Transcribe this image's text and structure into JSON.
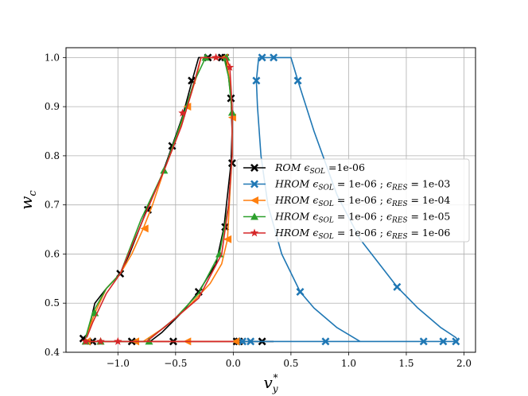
{
  "chart_data": {
    "type": "line",
    "xlabel": "v_y^*",
    "ylabel": "w_c",
    "xlim": [
      -1.45,
      2.1
    ],
    "ylim": [
      0.4,
      1.02
    ],
    "xticks": [
      -1.0,
      -0.5,
      0.0,
      0.5,
      1.0,
      1.5,
      2.0
    ],
    "xtick_labels": [
      "−1.0",
      "−0.5",
      "0.0",
      "0.5",
      "1.0",
      "1.5",
      "2.0"
    ],
    "yticks": [
      0.4,
      0.5,
      0.6,
      0.7,
      0.8,
      0.9,
      1.0
    ],
    "ytick_labels": [
      "0.4",
      "0.5",
      "0.6",
      "0.7",
      "0.8",
      "0.9",
      "1.0"
    ],
    "grid": true,
    "legend_position": "center-right",
    "series": [
      {
        "name": "ROM ϵSOL =1e-06",
        "legend": {
          "main": "ROM ",
          "eps1": "ϵ",
          "sub1": "SOL",
          "tail1": " =1e-06",
          "eps2": "",
          "sub2": "",
          "tail2": ""
        },
        "color": "#000000",
        "marker": "X",
        "line": [
          [
            -1.28,
            0.422
          ],
          [
            -1.15,
            0.422
          ],
          [
            -0.8,
            0.422
          ],
          [
            -0.5,
            0.422
          ],
          [
            -0.25,
            0.422
          ],
          [
            0.0,
            0.422
          ],
          [
            0.1,
            0.422
          ],
          [
            0.25,
            0.422
          ],
          [
            0.35,
            0.422
          ]
        ],
        "line2": [
          [
            -1.3,
            0.428
          ],
          [
            -1.28,
            0.43
          ],
          [
            -1.25,
            0.45
          ],
          [
            -1.2,
            0.5
          ],
          [
            -1.1,
            0.53
          ],
          [
            -0.98,
            0.56
          ],
          [
            -0.9,
            0.6
          ],
          [
            -0.75,
            0.69
          ],
          [
            -0.62,
            0.76
          ],
          [
            -0.53,
            0.82
          ],
          [
            -0.44,
            0.88
          ],
          [
            -0.36,
            0.95
          ],
          [
            -0.3,
            1.0
          ],
          [
            -0.22,
            1.0
          ],
          [
            -0.12,
            1.0
          ],
          [
            -0.08,
            1.0
          ],
          [
            -0.05,
            0.98
          ],
          [
            -0.02,
            0.917
          ],
          [
            -0.01,
            0.85
          ],
          [
            -0.02,
            0.785
          ],
          [
            -0.05,
            0.72
          ],
          [
            -0.08,
            0.655
          ],
          [
            -0.15,
            0.58
          ],
          [
            -0.3,
            0.523
          ],
          [
            -0.45,
            0.48
          ],
          [
            -0.62,
            0.44
          ],
          [
            -0.72,
            0.422
          ]
        ],
        "markers": [
          [
            -1.3,
            0.428
          ],
          [
            -1.22,
            0.422
          ],
          [
            -0.88,
            0.422
          ],
          [
            -0.52,
            0.422
          ],
          [
            0.03,
            0.422
          ],
          [
            0.05,
            0.422
          ],
          [
            0.25,
            0.422
          ],
          [
            -0.98,
            0.56
          ],
          [
            -0.74,
            0.69
          ],
          [
            -0.53,
            0.82
          ],
          [
            -0.36,
            0.953
          ],
          [
            -0.22,
            1.0
          ],
          [
            -0.1,
            1.0
          ],
          [
            -0.07,
            1.0
          ],
          [
            -0.02,
            0.917
          ],
          [
            -0.01,
            0.785
          ],
          [
            -0.07,
            0.655
          ],
          [
            -0.3,
            0.523
          ]
        ]
      },
      {
        "name": "HROM ϵSOL = 1e-06 ; ϵRES = 1e-03",
        "legend": {
          "main": "HROM ",
          "eps1": "ϵ",
          "sub1": "SOL",
          "tail1": " = 1e-06 ; ",
          "eps2": "ϵ",
          "sub2": "RES",
          "tail2": " = 1e-03"
        },
        "color": "#1f77b4",
        "marker": "X",
        "line": [
          [
            0.0,
            0.422
          ],
          [
            0.5,
            0.422
          ],
          [
            0.8,
            0.422
          ],
          [
            1.1,
            0.422
          ],
          [
            1.5,
            0.422
          ],
          [
            1.65,
            0.422
          ],
          [
            1.82,
            0.422
          ],
          [
            1.93,
            0.422
          ]
        ],
        "line2": [
          [
            1.1,
            0.422
          ],
          [
            0.9,
            0.45
          ],
          [
            0.7,
            0.49
          ],
          [
            0.58,
            0.523
          ],
          [
            0.42,
            0.6
          ],
          [
            0.3,
            0.7
          ],
          [
            0.24,
            0.8
          ],
          [
            0.21,
            0.9
          ],
          [
            0.2,
            0.953
          ],
          [
            0.22,
            1.0
          ],
          [
            0.35,
            1.0
          ],
          [
            0.5,
            1.0
          ],
          [
            0.56,
            0.953
          ],
          [
            0.7,
            0.85
          ],
          [
            0.9,
            0.72
          ],
          [
            1.1,
            0.63
          ],
          [
            1.42,
            0.533
          ],
          [
            1.6,
            0.49
          ],
          [
            1.8,
            0.45
          ],
          [
            1.93,
            0.43
          ],
          [
            1.95,
            0.422
          ]
        ],
        "markers": [
          [
            0.08,
            0.422
          ],
          [
            0.15,
            0.422
          ],
          [
            0.8,
            0.422
          ],
          [
            1.65,
            0.422
          ],
          [
            1.82,
            0.422
          ],
          [
            1.93,
            0.422
          ],
          [
            0.58,
            0.523
          ],
          [
            1.42,
            0.533
          ],
          [
            0.56,
            0.953
          ],
          [
            0.25,
            1.0
          ],
          [
            0.35,
            1.0
          ],
          [
            0.2,
            0.953
          ]
        ]
      },
      {
        "name": "HROM ϵSOL = 1e-06 ; ϵRES = 1e-04",
        "legend": {
          "main": "HROM ",
          "eps1": "ϵ",
          "sub1": "SOL",
          "tail1": " = 1e-06 ; ",
          "eps2": "ϵ",
          "sub2": "RES",
          "tail2": " = 1e-04"
        },
        "color": "#ff7f0e",
        "marker": "<",
        "line": [
          [
            -1.28,
            0.422
          ],
          [
            -0.85,
            0.422
          ],
          [
            -0.4,
            0.422
          ],
          [
            0.0,
            0.422
          ]
        ],
        "line2": [
          [
            -1.28,
            0.43
          ],
          [
            -1.2,
            0.48
          ],
          [
            -1.1,
            0.53
          ],
          [
            -0.98,
            0.56
          ],
          [
            -0.88,
            0.6
          ],
          [
            -0.78,
            0.652
          ],
          [
            -0.7,
            0.7
          ],
          [
            -0.6,
            0.77
          ],
          [
            -0.5,
            0.83
          ],
          [
            -0.4,
            0.9
          ],
          [
            -0.32,
            0.96
          ],
          [
            -0.28,
            1.0
          ],
          [
            -0.1,
            1.0
          ],
          [
            -0.06,
            1.0
          ],
          [
            -0.03,
            0.95
          ],
          [
            -0.01,
            0.878
          ],
          [
            -0.01,
            0.8
          ],
          [
            -0.03,
            0.72
          ],
          [
            -0.05,
            0.63
          ],
          [
            -0.1,
            0.58
          ],
          [
            -0.2,
            0.54
          ],
          [
            -0.4,
            0.49
          ],
          [
            -0.6,
            0.45
          ],
          [
            -0.78,
            0.422
          ]
        ],
        "markers": [
          [
            -1.27,
            0.422
          ],
          [
            -0.85,
            0.422
          ],
          [
            -0.4,
            0.422
          ],
          [
            0.02,
            0.422
          ],
          [
            -0.77,
            0.652
          ],
          [
            -0.4,
            0.9
          ],
          [
            -0.01,
            0.878
          ],
          [
            -0.05,
            0.63
          ],
          [
            -0.08,
            1.0
          ]
        ]
      },
      {
        "name": "HROM ϵSOL = 1e-06 ; ϵRES = 1e-05",
        "legend": {
          "main": "HROM ",
          "eps1": "ϵ",
          "sub1": "SOL",
          "tail1": " = 1e-06 ; ",
          "eps2": "ϵ",
          "sub2": "RES",
          "tail2": " = 1e-05"
        },
        "color": "#2ca02c",
        "marker": "^",
        "line": [
          [
            -1.28,
            0.422
          ],
          [
            -1.15,
            0.422
          ],
          [
            -0.75,
            0.422
          ]
        ],
        "line2": [
          [
            -1.28,
            0.43
          ],
          [
            -1.22,
            0.48
          ],
          [
            -1.1,
            0.53
          ],
          [
            -0.98,
            0.56
          ],
          [
            -0.8,
            0.67
          ],
          [
            -0.6,
            0.77
          ],
          [
            -0.45,
            0.87
          ],
          [
            -0.34,
            0.95
          ],
          [
            -0.24,
            1.0
          ],
          [
            -0.08,
            1.0
          ],
          [
            -0.04,
            0.96
          ],
          [
            -0.01,
            0.888
          ],
          [
            -0.01,
            0.8
          ],
          [
            -0.04,
            0.7
          ],
          [
            -0.12,
            0.6
          ],
          [
            -0.3,
            0.52
          ],
          [
            -0.5,
            0.47
          ],
          [
            -0.75,
            0.422
          ]
        ],
        "markers": [
          [
            -1.28,
            0.422
          ],
          [
            -1.15,
            0.422
          ],
          [
            -0.73,
            0.422
          ],
          [
            -1.2,
            0.48
          ],
          [
            -0.6,
            0.77
          ],
          [
            -0.24,
            1.0
          ],
          [
            -0.06,
            1.0
          ],
          [
            -0.01,
            0.888
          ],
          [
            -0.12,
            0.6
          ]
        ]
      },
      {
        "name": "HROM ϵSOL = 1e-06 ; ϵRES = 1e-06",
        "legend": {
          "main": "HROM ",
          "eps1": "ϵ",
          "sub1": "SOL",
          "tail1": " = 1e-06 ; ",
          "eps2": "ϵ",
          "sub2": "RES",
          "tail2": " = 1e-06"
        },
        "color": "#d62728",
        "marker": "*",
        "line": [
          [
            -1.28,
            0.422
          ],
          [
            -1.0,
            0.422
          ],
          [
            -0.5,
            0.422
          ],
          [
            0.0,
            0.422
          ]
        ],
        "line2": [
          [
            -1.27,
            0.43
          ],
          [
            -1.22,
            0.46
          ],
          [
            -1.1,
            0.52
          ],
          [
            -0.98,
            0.56
          ],
          [
            -0.8,
            0.66
          ],
          [
            -0.6,
            0.77
          ],
          [
            -0.45,
            0.86
          ],
          [
            -0.36,
            0.93
          ],
          [
            -0.28,
            1.0
          ],
          [
            -0.15,
            1.0
          ],
          [
            -0.06,
            1.0
          ],
          [
            -0.03,
            0.98
          ],
          [
            -0.01,
            0.9
          ],
          [
            -0.01,
            0.8
          ],
          [
            -0.04,
            0.7
          ],
          [
            -0.1,
            0.6
          ],
          [
            -0.3,
            0.51
          ],
          [
            -0.55,
            0.46
          ],
          [
            -0.75,
            0.422
          ]
        ],
        "markers": [
          [
            -1.28,
            0.422
          ],
          [
            -1.15,
            0.422
          ],
          [
            -1.0,
            0.422
          ],
          [
            -0.44,
            0.887
          ],
          [
            -0.15,
            1.0
          ],
          [
            -0.03,
            0.98
          ]
        ]
      }
    ]
  }
}
